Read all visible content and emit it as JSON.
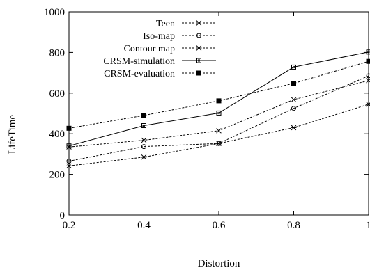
{
  "chart_data": {
    "type": "line",
    "title": "",
    "xlabel": "Distortion",
    "ylabel": "LifeTime",
    "xlim": [
      0.2,
      1
    ],
    "ylim": [
      0,
      1000
    ],
    "x": [
      0.2,
      0.4,
      0.6,
      0.8,
      1
    ],
    "x_tick_labels": [
      "0.2",
      "0.4",
      "0.6",
      "0.8",
      "1"
    ],
    "y_ticks": [
      0,
      200,
      400,
      600,
      800,
      1000
    ],
    "y_tick_labels": [
      "0",
      "200",
      "400",
      "600",
      "800",
      "1000"
    ],
    "grid": false,
    "legend_position": "top-left",
    "series": [
      {
        "name": "Teen",
        "marker": "x",
        "line": "dashed",
        "values": [
          335,
          368,
          415,
          568,
          662
        ]
      },
      {
        "name": "Iso-map",
        "marker": "circle",
        "line": "dashed",
        "values": [
          265,
          337,
          352,
          525,
          685
        ]
      },
      {
        "name": "Contour map",
        "marker": "star",
        "line": "dashed",
        "values": [
          242,
          285,
          352,
          430,
          545
        ]
      },
      {
        "name": "CRSM-simulation",
        "marker": "square-open",
        "line": "solid",
        "values": [
          340,
          440,
          502,
          728,
          802
        ]
      },
      {
        "name": "CRSM-evaluation",
        "marker": "square-filled",
        "line": "dashed",
        "values": [
          427,
          490,
          562,
          648,
          756
        ]
      }
    ]
  }
}
